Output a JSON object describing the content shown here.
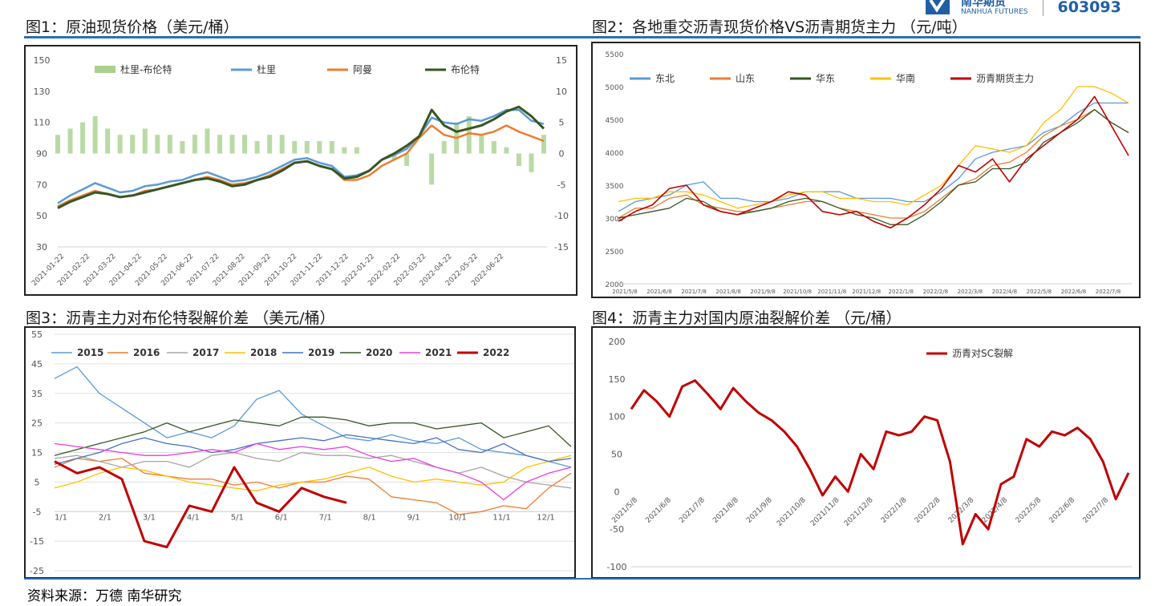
{
  "header": {
    "logo_text": "南华期货",
    "logo_sub": "NANHUA FUTURES",
    "stock_code": "603093"
  },
  "titles": [
    "图1：原油现货价格（美元/桶）",
    "图2：各地重交沥青现货价格VS沥青期货主力 （元/吨）",
    "图3：沥青主力对布伦特裂解价差 （美元/桶）",
    "图4：沥青主力对国内原油裂解价差 （元/桶）"
  ],
  "footer": "资料来源：万德 南华研究",
  "colors": {
    "rule": "#2e6db4"
  },
  "chart_data": [
    {
      "type": "line",
      "title": "图1：原油现货价格（美元/桶）",
      "ylim": [
        30,
        150
      ],
      "yticks": [
        "150",
        "130",
        "110",
        "90",
        "70",
        "50",
        "30"
      ],
      "y2lim": [
        -15,
        15
      ],
      "y2ticks": [
        "15",
        "10",
        "5",
        "0",
        "-5",
        "-10",
        "-15"
      ],
      "xticks": [
        "2021-01-22",
        "2021-02-22",
        "2021-03-22",
        "2021-04-22",
        "2021-05-22",
        "2021-06-22",
        "2021-07-22",
        "2021-08-22",
        "2021-09-22",
        "2021-10-22",
        "2021-11-22",
        "2021-12-22",
        "2022-01-22",
        "2022-02-22",
        "2022-03-22",
        "2022-04-22",
        "2022-05-22",
        "2022-06-22"
      ],
      "bars": {
        "name": "杜里-布伦特",
        "color": "#a9d18e",
        "axis": "right",
        "values": [
          3,
          4,
          5,
          6,
          4,
          3,
          3,
          4,
          3,
          3,
          2,
          3,
          4,
          3,
          3,
          3,
          2,
          3,
          3,
          2,
          2,
          2,
          2,
          1,
          1,
          0,
          0,
          -1,
          -2,
          0,
          -5,
          2,
          5,
          6,
          3,
          2,
          1,
          -2,
          -3,
          3
        ]
      },
      "series": [
        {
          "name": "杜里",
          "color": "#5b9bd5",
          "values": [
            58,
            63,
            67,
            71,
            68,
            65,
            66,
            69,
            70,
            72,
            73,
            76,
            78,
            75,
            72,
            73,
            75,
            78,
            82,
            86,
            87,
            84,
            82,
            75,
            76,
            79,
            86,
            89,
            93,
            101,
            113,
            110,
            109,
            112,
            111,
            114,
            118,
            118,
            111,
            109
          ]
        },
        {
          "name": "阿曼",
          "color": "#ed7d31",
          "values": [
            56,
            60,
            63,
            66,
            64,
            62,
            63,
            66,
            67,
            69,
            71,
            73,
            75,
            73,
            70,
            71,
            73,
            76,
            80,
            84,
            85,
            82,
            80,
            73,
            73,
            76,
            82,
            86,
            90,
            100,
            108,
            102,
            100,
            103,
            102,
            104,
            108,
            104,
            101,
            98
          ]
        },
        {
          "name": "布伦特",
          "color": "#375623",
          "values": [
            55,
            59,
            62,
            65,
            64,
            62,
            63,
            65,
            67,
            69,
            71,
            73,
            74,
            72,
            69,
            70,
            73,
            75,
            79,
            84,
            85,
            82,
            80,
            74,
            75,
            79,
            86,
            90,
            95,
            101,
            118,
            108,
            104,
            106,
            108,
            112,
            117,
            120,
            114,
            106
          ]
        }
      ]
    },
    {
      "type": "line",
      "title": "图2：各地重交沥青现货价格VS沥青期货主力 （元/吨）",
      "ylim": [
        2000,
        5500
      ],
      "yticks": [
        "5500",
        "5000",
        "4500",
        "4000",
        "3500",
        "3000",
        "2500",
        "2000"
      ],
      "xticks": [
        "2021/5/8",
        "2021/6/8",
        "2021/7/8",
        "2021/8/8",
        "2021/9/8",
        "2021/10/8",
        "2021/11/8",
        "2021/12/8",
        "2022/1/8",
        "2022/2/8",
        "2022/3/8",
        "2022/4/8",
        "2022/5/8",
        "2022/6/8",
        "2022/7/8"
      ],
      "series": [
        {
          "name": "东北",
          "color": "#5b9bd5",
          "values": [
            3100,
            3250,
            3300,
            3350,
            3500,
            3550,
            3300,
            3300,
            3250,
            3250,
            3300,
            3400,
            3400,
            3400,
            3300,
            3300,
            3300,
            3250,
            3250,
            3400,
            3600,
            3900,
            4000,
            4050,
            4100,
            4300,
            4400,
            4600,
            4750,
            4750,
            4750
          ]
        },
        {
          "name": "山东",
          "color": "#ed7d31",
          "values": [
            3000,
            3150,
            3150,
            3300,
            3350,
            3200,
            3150,
            3100,
            3100,
            3150,
            3200,
            3250,
            3250,
            3150,
            3100,
            3050,
            3000,
            3000,
            3100,
            3300,
            3500,
            3600,
            3800,
            3850,
            4000,
            4250,
            4400,
            4500,
            4650,
            4450,
            4300
          ]
        },
        {
          "name": "华东",
          "color": "#375623",
          "values": [
            3000,
            3050,
            3100,
            3150,
            3300,
            3250,
            3100,
            3050,
            3100,
            3150,
            3250,
            3300,
            3250,
            3150,
            3050,
            3000,
            2900,
            2900,
            3050,
            3250,
            3500,
            3550,
            3750,
            3750,
            3850,
            4150,
            4300,
            4450,
            4650,
            4450,
            4300
          ]
        },
        {
          "name": "华南",
          "color": "#ffc000",
          "values": [
            3250,
            3300,
            3300,
            3400,
            3400,
            3350,
            3250,
            3150,
            3200,
            3250,
            3350,
            3400,
            3400,
            3300,
            3300,
            3250,
            3250,
            3200,
            3350,
            3500,
            3800,
            4100,
            4050,
            4000,
            4100,
            4450,
            4650,
            5000,
            5000,
            4900,
            4750
          ]
        },
        {
          "name": "沥青期货主力",
          "color": "#c00000",
          "values": [
            2950,
            3100,
            3200,
            3450,
            3500,
            3200,
            3100,
            3050,
            3150,
            3250,
            3400,
            3350,
            3100,
            3050,
            3100,
            2950,
            2850,
            3000,
            3200,
            3450,
            3800,
            3700,
            3900,
            3550,
            3900,
            4100,
            4300,
            4500,
            4850,
            4400,
            3950
          ]
        }
      ]
    },
    {
      "type": "line",
      "title": "图3：沥青主力对布伦特裂解价差 （美元/桶）",
      "ylim": [
        -25,
        55
      ],
      "yticks": [
        "55",
        "45",
        "35",
        "25",
        "15",
        "5",
        "-5",
        "-15",
        "-25"
      ],
      "xticks": [
        "1/1",
        "2/1",
        "3/1",
        "4/1",
        "5/1",
        "6/1",
        "7/1",
        "8/1",
        "9/1",
        "10/1",
        "11/1",
        "12/1"
      ],
      "series": [
        {
          "name": "2015",
          "color": "#5b9bd5",
          "values": [
            40,
            44,
            35,
            30,
            25,
            20,
            22,
            20,
            24,
            33,
            36,
            28,
            24,
            20,
            19,
            21,
            19,
            18,
            20,
            16,
            15,
            14,
            12,
            10
          ]
        },
        {
          "name": "2016",
          "color": "#ed7d31",
          "values": [
            10,
            13,
            12,
            13,
            8,
            7,
            6,
            6,
            4,
            5,
            3,
            5,
            5,
            7,
            6,
            0,
            -1,
            -2,
            -6,
            -5,
            -3,
            -4,
            3,
            8
          ]
        },
        {
          "name": "2017",
          "color": "#a5a5a5",
          "values": [
            13,
            14,
            12,
            10,
            12,
            12,
            10,
            14,
            15,
            13,
            12,
            15,
            14,
            14,
            13,
            14,
            12,
            10,
            8,
            10,
            7,
            5,
            4,
            3
          ]
        },
        {
          "name": "2018",
          "color": "#ffc000",
          "values": [
            3,
            5,
            8,
            10,
            9,
            7,
            5,
            4,
            3,
            2,
            4,
            5,
            6,
            8,
            10,
            7,
            5,
            6,
            5,
            4,
            5,
            10,
            12,
            14
          ]
        },
        {
          "name": "2019",
          "color": "#4472c4",
          "values": [
            11,
            13,
            15,
            18,
            20,
            18,
            17,
            15,
            16,
            18,
            19,
            20,
            19,
            21,
            20,
            19,
            18,
            20,
            16,
            15,
            18,
            14,
            12,
            13
          ]
        },
        {
          "name": "2020",
          "color": "#375623",
          "values": [
            14,
            16,
            18,
            20,
            22,
            25,
            22,
            24,
            26,
            25,
            24,
            27,
            27,
            26,
            24,
            25,
            25,
            23,
            24,
            25,
            20,
            22,
            24,
            17
          ]
        },
        {
          "name": "2021",
          "color": "#e83ee0",
          "values": [
            18,
            17,
            16,
            15,
            14,
            14,
            15,
            16,
            15,
            18,
            16,
            17,
            16,
            17,
            14,
            12,
            13,
            10,
            8,
            5,
            -1,
            5,
            8,
            10
          ]
        },
        {
          "name": "2022",
          "color": "#c00000",
          "values": [
            12,
            8,
            10,
            6,
            -15,
            -17,
            -3,
            -5,
            10,
            -2,
            -5,
            3,
            0,
            -2
          ]
        }
      ]
    },
    {
      "type": "line",
      "title": "图4：沥青主力对国内原油裂解价差 （元/桶）",
      "ylim": [
        -100,
        200
      ],
      "yticks": [
        "200",
        "150",
        "100",
        "50",
        "0",
        "-50",
        "-100"
      ],
      "xticks": [
        "2021/5/8",
        "2021/6/8",
        "2021/7/8",
        "2021/8/8",
        "2021/9/8",
        "2021/10/8",
        "2021/11/8",
        "2021/12/8",
        "2022/1/8",
        "2022/2/8",
        "2022/3/8",
        "2022/4/8",
        "2022/5/8",
        "2022/6/8",
        "2022/7/8"
      ],
      "series": [
        {
          "name": "沥青对SC裂解",
          "color": "#c00000",
          "values": [
            110,
            135,
            120,
            100,
            140,
            148,
            130,
            110,
            138,
            120,
            105,
            95,
            80,
            60,
            30,
            -5,
            20,
            0,
            50,
            30,
            80,
            75,
            80,
            100,
            95,
            40,
            -70,
            -30,
            -50,
            10,
            20,
            70,
            60,
            80,
            75,
            85,
            70,
            40,
            -10,
            25
          ]
        }
      ]
    }
  ]
}
